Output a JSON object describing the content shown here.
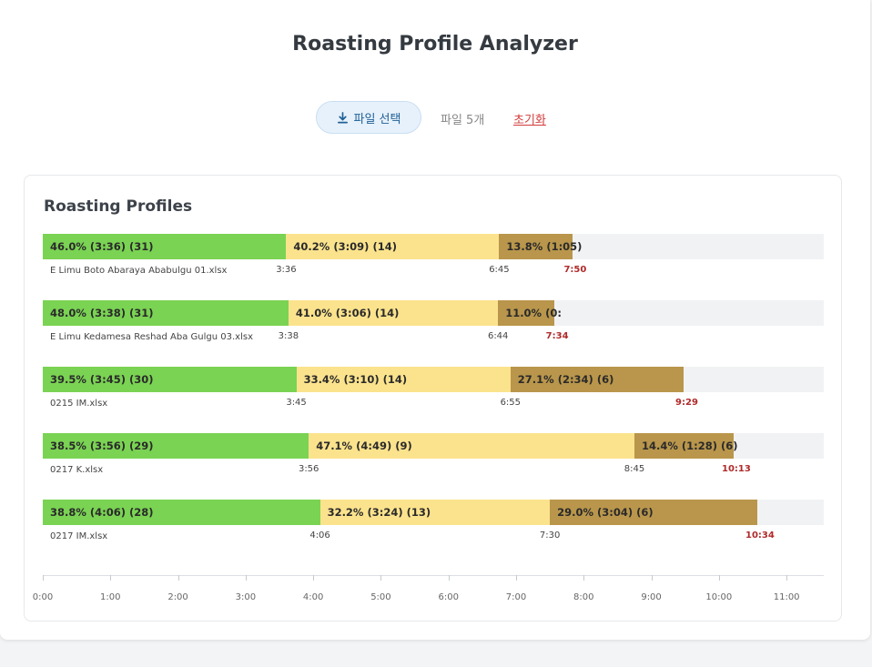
{
  "app": {
    "title": "Roasting Profile Analyzer"
  },
  "toolbar": {
    "file_select_label": "파일 선택",
    "file_count": "파일 5개",
    "reset_label": "초기화",
    "download_icon": "download-icon"
  },
  "colors": {
    "dry": "#7ad353",
    "maillard": "#fbe38d",
    "development": "#b9964b",
    "end_time": "#b02a2a"
  },
  "panel": {
    "title": "Roasting Profiles"
  },
  "chart_data": {
    "type": "bar",
    "orientation": "horizontal-stacked",
    "x_axis": {
      "min_seconds": 0,
      "max_seconds": 693,
      "tick_labels": [
        "0:00",
        "1:00",
        "2:00",
        "3:00",
        "4:00",
        "5:00",
        "6:00",
        "7:00",
        "8:00",
        "9:00",
        "10:00",
        "11:00"
      ]
    },
    "profiles": [
      {
        "file": "E Limu Boto Abaraya Ababulgu 01.xlsx",
        "segments": [
          {
            "phase": "dry",
            "seconds": 216,
            "label": "46.0% (3:36) (31)"
          },
          {
            "phase": "maillard",
            "seconds": 189,
            "label": "40.2% (3:09) (14)"
          },
          {
            "phase": "development",
            "seconds": 65,
            "label": "13.8% (1:05)"
          }
        ],
        "marks": [
          "3:36",
          "6:45"
        ],
        "end": "7:50"
      },
      {
        "file": "E Limu Kedamesa Reshad Aba Gulgu 03.xlsx",
        "segments": [
          {
            "phase": "dry",
            "seconds": 218,
            "label": "48.0% (3:38) (31)"
          },
          {
            "phase": "maillard",
            "seconds": 186,
            "label": "41.0% (3:06) (14)"
          },
          {
            "phase": "development",
            "seconds": 50,
            "label": "11.0% (0:"
          }
        ],
        "marks": [
          "3:38",
          "6:44"
        ],
        "end": "7:34"
      },
      {
        "file": "0215 IM.xlsx",
        "segments": [
          {
            "phase": "dry",
            "seconds": 225,
            "label": "39.5% (3:45) (30)"
          },
          {
            "phase": "maillard",
            "seconds": 190,
            "label": "33.4% (3:10) (14)"
          },
          {
            "phase": "development",
            "seconds": 154,
            "label": "27.1% (2:34) (6)"
          }
        ],
        "marks": [
          "3:45",
          "6:55"
        ],
        "end": "9:29"
      },
      {
        "file": "0217 K.xlsx",
        "segments": [
          {
            "phase": "dry",
            "seconds": 236,
            "label": "38.5% (3:56) (29)"
          },
          {
            "phase": "maillard",
            "seconds": 289,
            "label": "47.1% (4:49) (9)"
          },
          {
            "phase": "development",
            "seconds": 88,
            "label": "14.4% (1:28) (6)"
          }
        ],
        "marks": [
          "3:56",
          "8:45"
        ],
        "end": "10:13"
      },
      {
        "file": "0217 IM.xlsx",
        "segments": [
          {
            "phase": "dry",
            "seconds": 246,
            "label": "38.8% (4:06) (28)"
          },
          {
            "phase": "maillard",
            "seconds": 204,
            "label": "32.2% (3:24) (13)"
          },
          {
            "phase": "development",
            "seconds": 184,
            "label": "29.0% (3:04) (6)"
          }
        ],
        "marks": [
          "4:06",
          "7:30"
        ],
        "end": "10:34"
      }
    ]
  }
}
